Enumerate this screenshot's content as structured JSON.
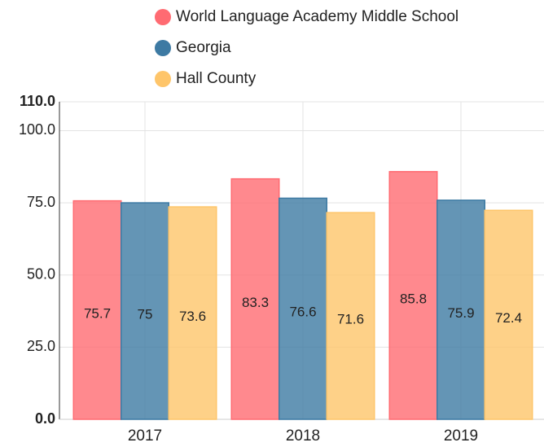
{
  "chart_data": {
    "type": "bar",
    "categories": [
      "2017",
      "2018",
      "2019"
    ],
    "series": [
      {
        "name": "World Language Academy Middle School",
        "color": "#ff6b72",
        "values": [
          75.7,
          83.3,
          85.8
        ]
      },
      {
        "name": "Georgia",
        "color": "#3d7aa3",
        "values": [
          75.0,
          76.6,
          75.9
        ]
      },
      {
        "name": "Hall County",
        "color": "#fec56a",
        "values": [
          73.6,
          71.6,
          72.4
        ]
      }
    ],
    "ylim": [
      0,
      110
    ],
    "yticks": [
      {
        "value": 0,
        "label": "0.0"
      },
      {
        "value": 25,
        "label": "25.0"
      },
      {
        "value": 50,
        "label": "50.0"
      },
      {
        "value": 75,
        "label": "75.0"
      },
      {
        "value": 100,
        "label": "100.0"
      },
      {
        "value": 110,
        "label": "110.0"
      }
    ],
    "grid": true
  }
}
